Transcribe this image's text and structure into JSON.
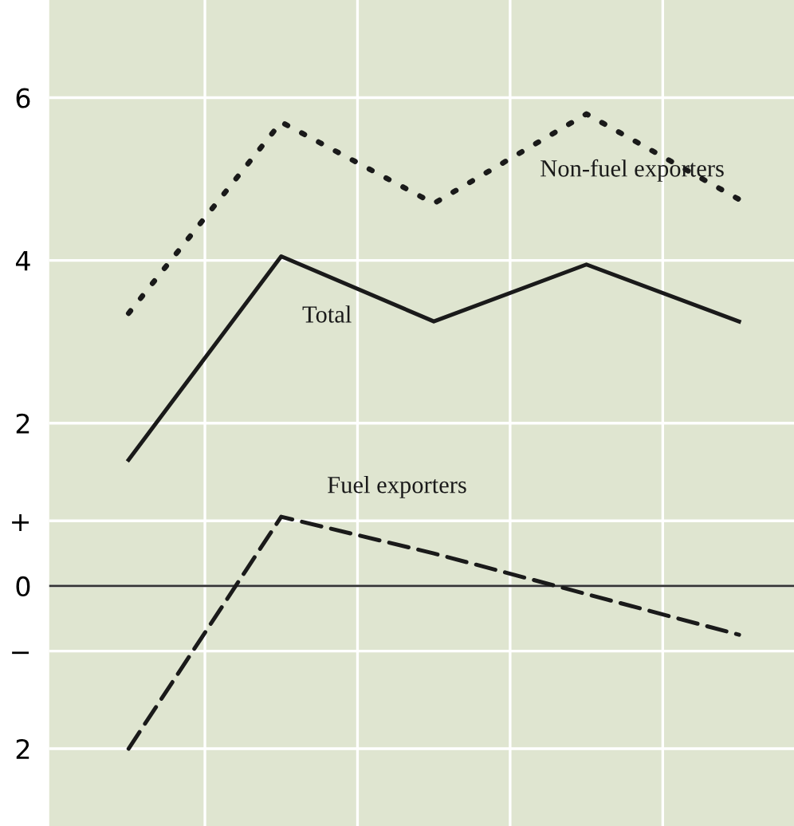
{
  "chart_data": {
    "type": "line",
    "categories": [
      null,
      null,
      null,
      null,
      null
    ],
    "series": [
      {
        "name": "Non-fuel exporters",
        "color": "#1a1a1a",
        "line_style": "dotted",
        "values": [
          3.35,
          5.7,
          4.7,
          5.8,
          4.75
        ]
      },
      {
        "name": "Total",
        "color": "#1a1a1a",
        "line_style": "solid",
        "values": [
          1.55,
          4.05,
          3.25,
          3.95,
          3.25
        ]
      },
      {
        "name": "Fuel exporters",
        "color": "#1a1a1a",
        "line_style": "dashed",
        "values": [
          -2.0,
          0.85,
          0.4,
          -0.1,
          -0.6
        ]
      }
    ],
    "ylim": [
      -2.95,
      7.2
    ],
    "yticks": [
      {
        "value": -2,
        "label": "2"
      },
      {
        "value": -0.8,
        "label": "−"
      },
      0,
      {
        "value": 0.8,
        "label": "+"
      },
      2,
      4,
      6
    ],
    "ref_lines": [
      {
        "axis": "y",
        "value": 0,
        "color": "#333333"
      }
    ],
    "grid": true,
    "marker": "none"
  }
}
